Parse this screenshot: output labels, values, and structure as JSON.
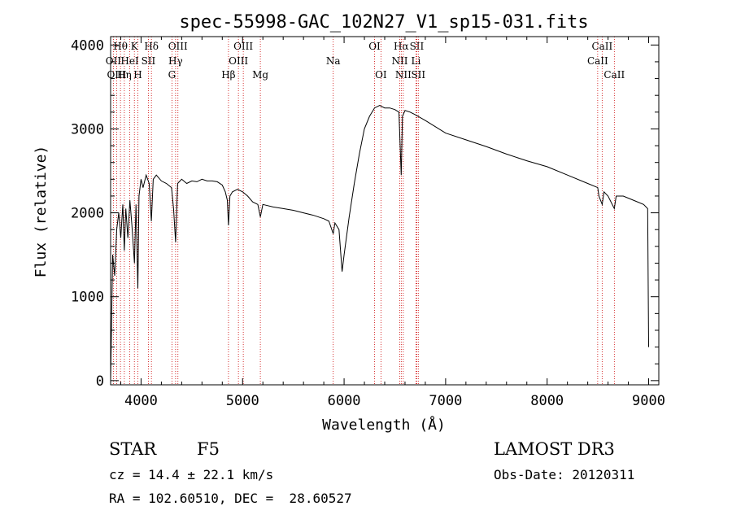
{
  "chart_data": {
    "type": "line",
    "title": "spec-55998-GAC_102N27_V1_sp15-031.fits",
    "xlabel": "Wavelength (Å)",
    "ylabel": "Flux (relative)",
    "xlim": [
      3700,
      9100
    ],
    "ylim": [
      -50,
      4100
    ],
    "x_ticks": [
      4000,
      5000,
      6000,
      7000,
      8000,
      9000
    ],
    "y_ticks": [
      0,
      1000,
      2000,
      3000,
      4000
    ],
    "series": [
      {
        "name": "flux",
        "points": [
          [
            3700,
            0
          ],
          [
            3710,
            700
          ],
          [
            3720,
            1500
          ],
          [
            3740,
            1250
          ],
          [
            3760,
            1800
          ],
          [
            3780,
            2000
          ],
          [
            3800,
            1700
          ],
          [
            3820,
            2100
          ],
          [
            3835,
            1550
          ],
          [
            3850,
            2050
          ],
          [
            3870,
            1700
          ],
          [
            3890,
            2150
          ],
          [
            3910,
            1850
          ],
          [
            3935,
            1400
          ],
          [
            3950,
            2100
          ],
          [
            3968,
            1100
          ],
          [
            3980,
            2200
          ],
          [
            4000,
            2400
          ],
          [
            4020,
            2300
          ],
          [
            4050,
            2450
          ],
          [
            4080,
            2350
          ],
          [
            4101,
            1900
          ],
          [
            4120,
            2400
          ],
          [
            4150,
            2450
          ],
          [
            4200,
            2380
          ],
          [
            4250,
            2350
          ],
          [
            4300,
            2300
          ],
          [
            4320,
            2050
          ],
          [
            4340,
            1650
          ],
          [
            4360,
            2350
          ],
          [
            4400,
            2400
          ],
          [
            4450,
            2350
          ],
          [
            4500,
            2380
          ],
          [
            4550,
            2370
          ],
          [
            4600,
            2400
          ],
          [
            4650,
            2380
          ],
          [
            4700,
            2380
          ],
          [
            4750,
            2370
          ],
          [
            4800,
            2330
          ],
          [
            4830,
            2250
          ],
          [
            4850,
            2150
          ],
          [
            4861,
            1850
          ],
          [
            4875,
            2200
          ],
          [
            4900,
            2250
          ],
          [
            4950,
            2280
          ],
          [
            5000,
            2250
          ],
          [
            5050,
            2200
          ],
          [
            5100,
            2130
          ],
          [
            5150,
            2100
          ],
          [
            5175,
            1950
          ],
          [
            5200,
            2100
          ],
          [
            5300,
            2070
          ],
          [
            5400,
            2050
          ],
          [
            5500,
            2030
          ],
          [
            5600,
            2000
          ],
          [
            5700,
            1970
          ],
          [
            5800,
            1930
          ],
          [
            5850,
            1900
          ],
          [
            5893,
            1750
          ],
          [
            5910,
            1880
          ],
          [
            5950,
            1800
          ],
          [
            5980,
            1300
          ],
          [
            6000,
            1500
          ],
          [
            6050,
            1950
          ],
          [
            6100,
            2350
          ],
          [
            6150,
            2700
          ],
          [
            6200,
            3000
          ],
          [
            6250,
            3150
          ],
          [
            6300,
            3250
          ],
          [
            6350,
            3280
          ],
          [
            6400,
            3250
          ],
          [
            6450,
            3250
          ],
          [
            6500,
            3230
          ],
          [
            6540,
            3200
          ],
          [
            6563,
            2450
          ],
          [
            6575,
            3150
          ],
          [
            6600,
            3220
          ],
          [
            6650,
            3200
          ],
          [
            6700,
            3170
          ],
          [
            6800,
            3100
          ],
          [
            7000,
            2950
          ],
          [
            7200,
            2870
          ],
          [
            7400,
            2790
          ],
          [
            7600,
            2700
          ],
          [
            7800,
            2620
          ],
          [
            8000,
            2550
          ],
          [
            8200,
            2450
          ],
          [
            8400,
            2350
          ],
          [
            8498,
            2300
          ],
          [
            8510,
            2200
          ],
          [
            8542,
            2100
          ],
          [
            8560,
            2250
          ],
          [
            8600,
            2200
          ],
          [
            8662,
            2050
          ],
          [
            8680,
            2200
          ],
          [
            8750,
            2200
          ],
          [
            8850,
            2150
          ],
          [
            8950,
            2100
          ],
          [
            8990,
            2050
          ],
          [
            9000,
            400
          ]
        ]
      }
    ],
    "spectral_lines": [
      {
        "label": "Hθ",
        "wavelength": 3797,
        "row": 1
      },
      {
        "label": "OII",
        "wavelength": 3727,
        "row": 2
      },
      {
        "label": "OIII",
        "wavelength": 3760,
        "row": 3
      },
      {
        "label": "K",
        "wavelength": 3934,
        "row": 1
      },
      {
        "label": "HeI",
        "wavelength": 3889,
        "row": 2
      },
      {
        "label": "Hη",
        "wavelength": 3835,
        "row": 3
      },
      {
        "label": "H",
        "wavelength": 3968,
        "row": 3
      },
      {
        "label": "Hδ",
        "wavelength": 4102,
        "row": 1
      },
      {
        "label": "SII",
        "wavelength": 4072,
        "row": 2
      },
      {
        "label": "OIII",
        "wavelength": 4363,
        "row": 1
      },
      {
        "label": "Hγ",
        "wavelength": 4340,
        "row": 2
      },
      {
        "label": "G",
        "wavelength": 4304,
        "row": 3
      },
      {
        "label": "Hβ",
        "wavelength": 4861,
        "row": 3
      },
      {
        "label": "OIII",
        "wavelength": 5007,
        "row": 1
      },
      {
        "label": "OIII",
        "wavelength": 4959,
        "row": 2
      },
      {
        "label": "Mg",
        "wavelength": 5175,
        "row": 3
      },
      {
        "label": "Na",
        "wavelength": 5893,
        "row": 2
      },
      {
        "label": "OI",
        "wavelength": 6300,
        "row": 1
      },
      {
        "label": "OI",
        "wavelength": 6363,
        "row": 3
      },
      {
        "label": "Hα",
        "wavelength": 6563,
        "row": 1
      },
      {
        "label": "NII",
        "wavelength": 6548,
        "row": 2
      },
      {
        "label": "NII",
        "wavelength": 6583,
        "row": 3
      },
      {
        "label": "SII",
        "wavelength": 6716,
        "row": 1
      },
      {
        "label": "Li",
        "wavelength": 6708,
        "row": 2
      },
      {
        "label": "SII",
        "wavelength": 6731,
        "row": 3
      },
      {
        "label": "CaII",
        "wavelength": 8542,
        "row": 1
      },
      {
        "label": "CaII",
        "wavelength": 8498,
        "row": 2
      },
      {
        "label": "CaII",
        "wavelength": 8662,
        "row": 3
      }
    ]
  },
  "info": {
    "class": "STAR",
    "subclass": "F5",
    "survey": "LAMOST DR3",
    "cz": "cz = 14.4 ± 22.1 km/s",
    "obs_date": "Obs-Date: 20120311",
    "coords": "RA = 102.60510, DEC =  28.60527"
  },
  "colors": {
    "line": "#000000",
    "marker": "#cc0000",
    "axes": "#000000"
  }
}
